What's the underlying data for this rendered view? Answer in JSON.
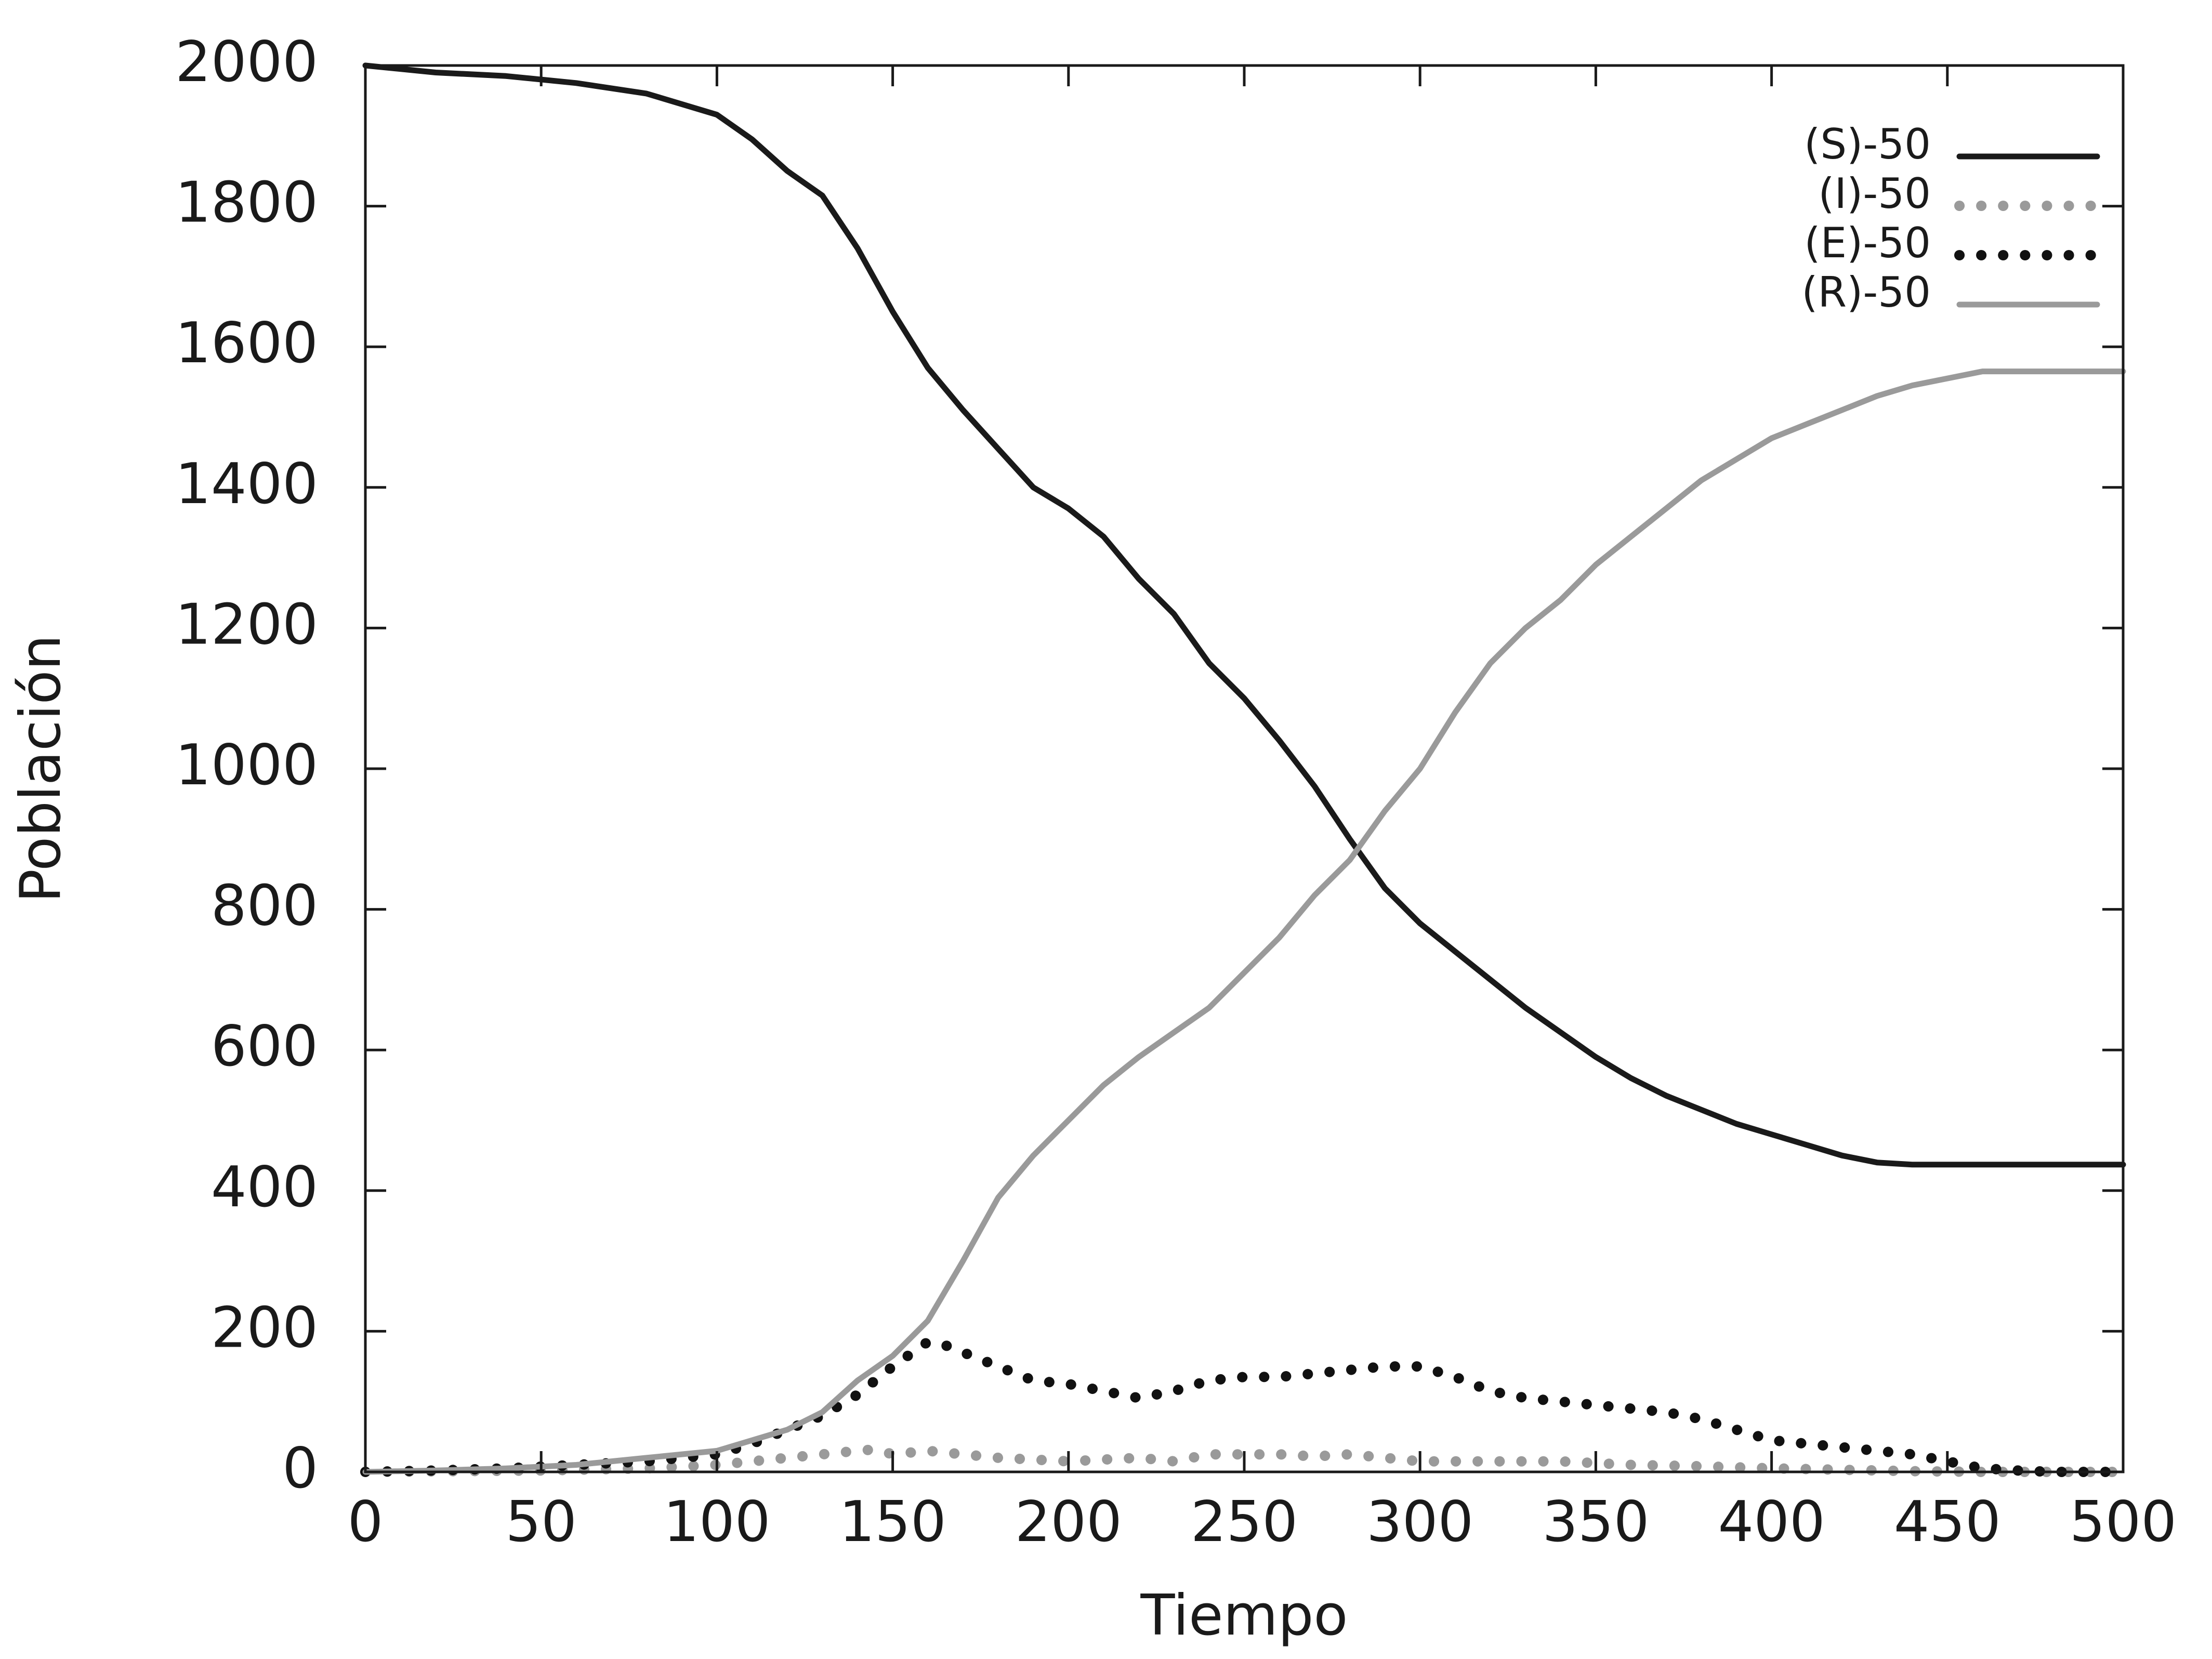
{
  "chart_data": {
    "type": "line",
    "xlabel": "Tiempo",
    "ylabel": "Población",
    "xlim": [
      0,
      500
    ],
    "ylim": [
      0,
      2000
    ],
    "xticks": [
      "0",
      "50",
      "100",
      "150",
      "200",
      "250",
      "300",
      "350",
      "400",
      "450",
      "500"
    ],
    "yticks": [
      "0",
      "200",
      "400",
      "600",
      "800",
      "1000",
      "1200",
      "1400",
      "1600",
      "1800",
      "2000"
    ],
    "grid": false,
    "legend_position": "top-right",
    "series": [
      {
        "name": "(S)-50",
        "color": "#1a1a1a",
        "style": "solid",
        "x": [
          0,
          20,
          40,
          60,
          80,
          100,
          110,
          120,
          130,
          140,
          150,
          160,
          170,
          180,
          190,
          200,
          210,
          220,
          230,
          240,
          250,
          260,
          270,
          280,
          290,
          300,
          310,
          320,
          330,
          340,
          350,
          360,
          370,
          380,
          390,
          400,
          410,
          420,
          430,
          440,
          460,
          480,
          500
        ],
        "y": [
          2000,
          1990,
          1985,
          1975,
          1960,
          1930,
          1895,
          1850,
          1815,
          1740,
          1650,
          1570,
          1510,
          1455,
          1400,
          1370,
          1330,
          1270,
          1220,
          1150,
          1100,
          1040,
          975,
          900,
          830,
          780,
          740,
          700,
          660,
          625,
          590,
          560,
          535,
          515,
          495,
          480,
          465,
          450,
          440,
          437,
          437,
          437,
          437
        ]
      },
      {
        "name": "(I)-50",
        "color": "#9a9a9a",
        "style": "dotted",
        "x": [
          0,
          50,
          80,
          100,
          110,
          120,
          130,
          140,
          145,
          150,
          160,
          170,
          180,
          200,
          220,
          230,
          240,
          250,
          260,
          270,
          280,
          290,
          300,
          320,
          340,
          360,
          380,
          400,
          420,
          440,
          460,
          480,
          500
        ],
        "y": [
          0,
          2,
          5,
          10,
          15,
          20,
          25,
          30,
          32,
          25,
          30,
          25,
          20,
          15,
          20,
          15,
          25,
          25,
          25,
          22,
          25,
          20,
          15,
          15,
          15,
          10,
          8,
          5,
          3,
          1,
          0,
          0,
          0
        ]
      },
      {
        "name": "(E)-50",
        "color": "#111111",
        "style": "dotted",
        "x": [
          0,
          20,
          40,
          60,
          80,
          100,
          110,
          120,
          130,
          140,
          150,
          160,
          165,
          170,
          180,
          190,
          200,
          210,
          220,
          230,
          240,
          250,
          260,
          270,
          280,
          290,
          300,
          310,
          320,
          330,
          340,
          350,
          360,
          370,
          380,
          390,
          400,
          410,
          420,
          430,
          440,
          450,
          460,
          470,
          480,
          490,
          500
        ],
        "y": [
          0,
          2,
          5,
          10,
          15,
          25,
          40,
          60,
          80,
          110,
          150,
          185,
          180,
          170,
          150,
          130,
          125,
          115,
          105,
          115,
          130,
          135,
          135,
          140,
          145,
          150,
          150,
          135,
          115,
          105,
          100,
          95,
          90,
          85,
          75,
          60,
          45,
          40,
          35,
          30,
          25,
          15,
          5,
          2,
          0,
          0,
          0
        ]
      },
      {
        "name": "(R)-50",
        "color": "#9a9a9a",
        "style": "solid",
        "x": [
          0,
          20,
          40,
          60,
          80,
          100,
          110,
          120,
          130,
          140,
          150,
          160,
          170,
          180,
          190,
          200,
          210,
          220,
          230,
          240,
          250,
          260,
          270,
          280,
          290,
          300,
          310,
          320,
          330,
          340,
          350,
          360,
          370,
          380,
          390,
          400,
          410,
          420,
          430,
          440,
          450,
          460,
          480,
          500
        ],
        "y": [
          0,
          2,
          5,
          10,
          20,
          30,
          45,
          60,
          85,
          130,
          165,
          215,
          300,
          390,
          450,
          500,
          550,
          590,
          625,
          660,
          710,
          760,
          820,
          870,
          940,
          1000,
          1080,
          1150,
          1200,
          1240,
          1290,
          1330,
          1370,
          1410,
          1440,
          1470,
          1490,
          1510,
          1530,
          1545,
          1555,
          1565,
          1565,
          1565
        ]
      }
    ]
  }
}
